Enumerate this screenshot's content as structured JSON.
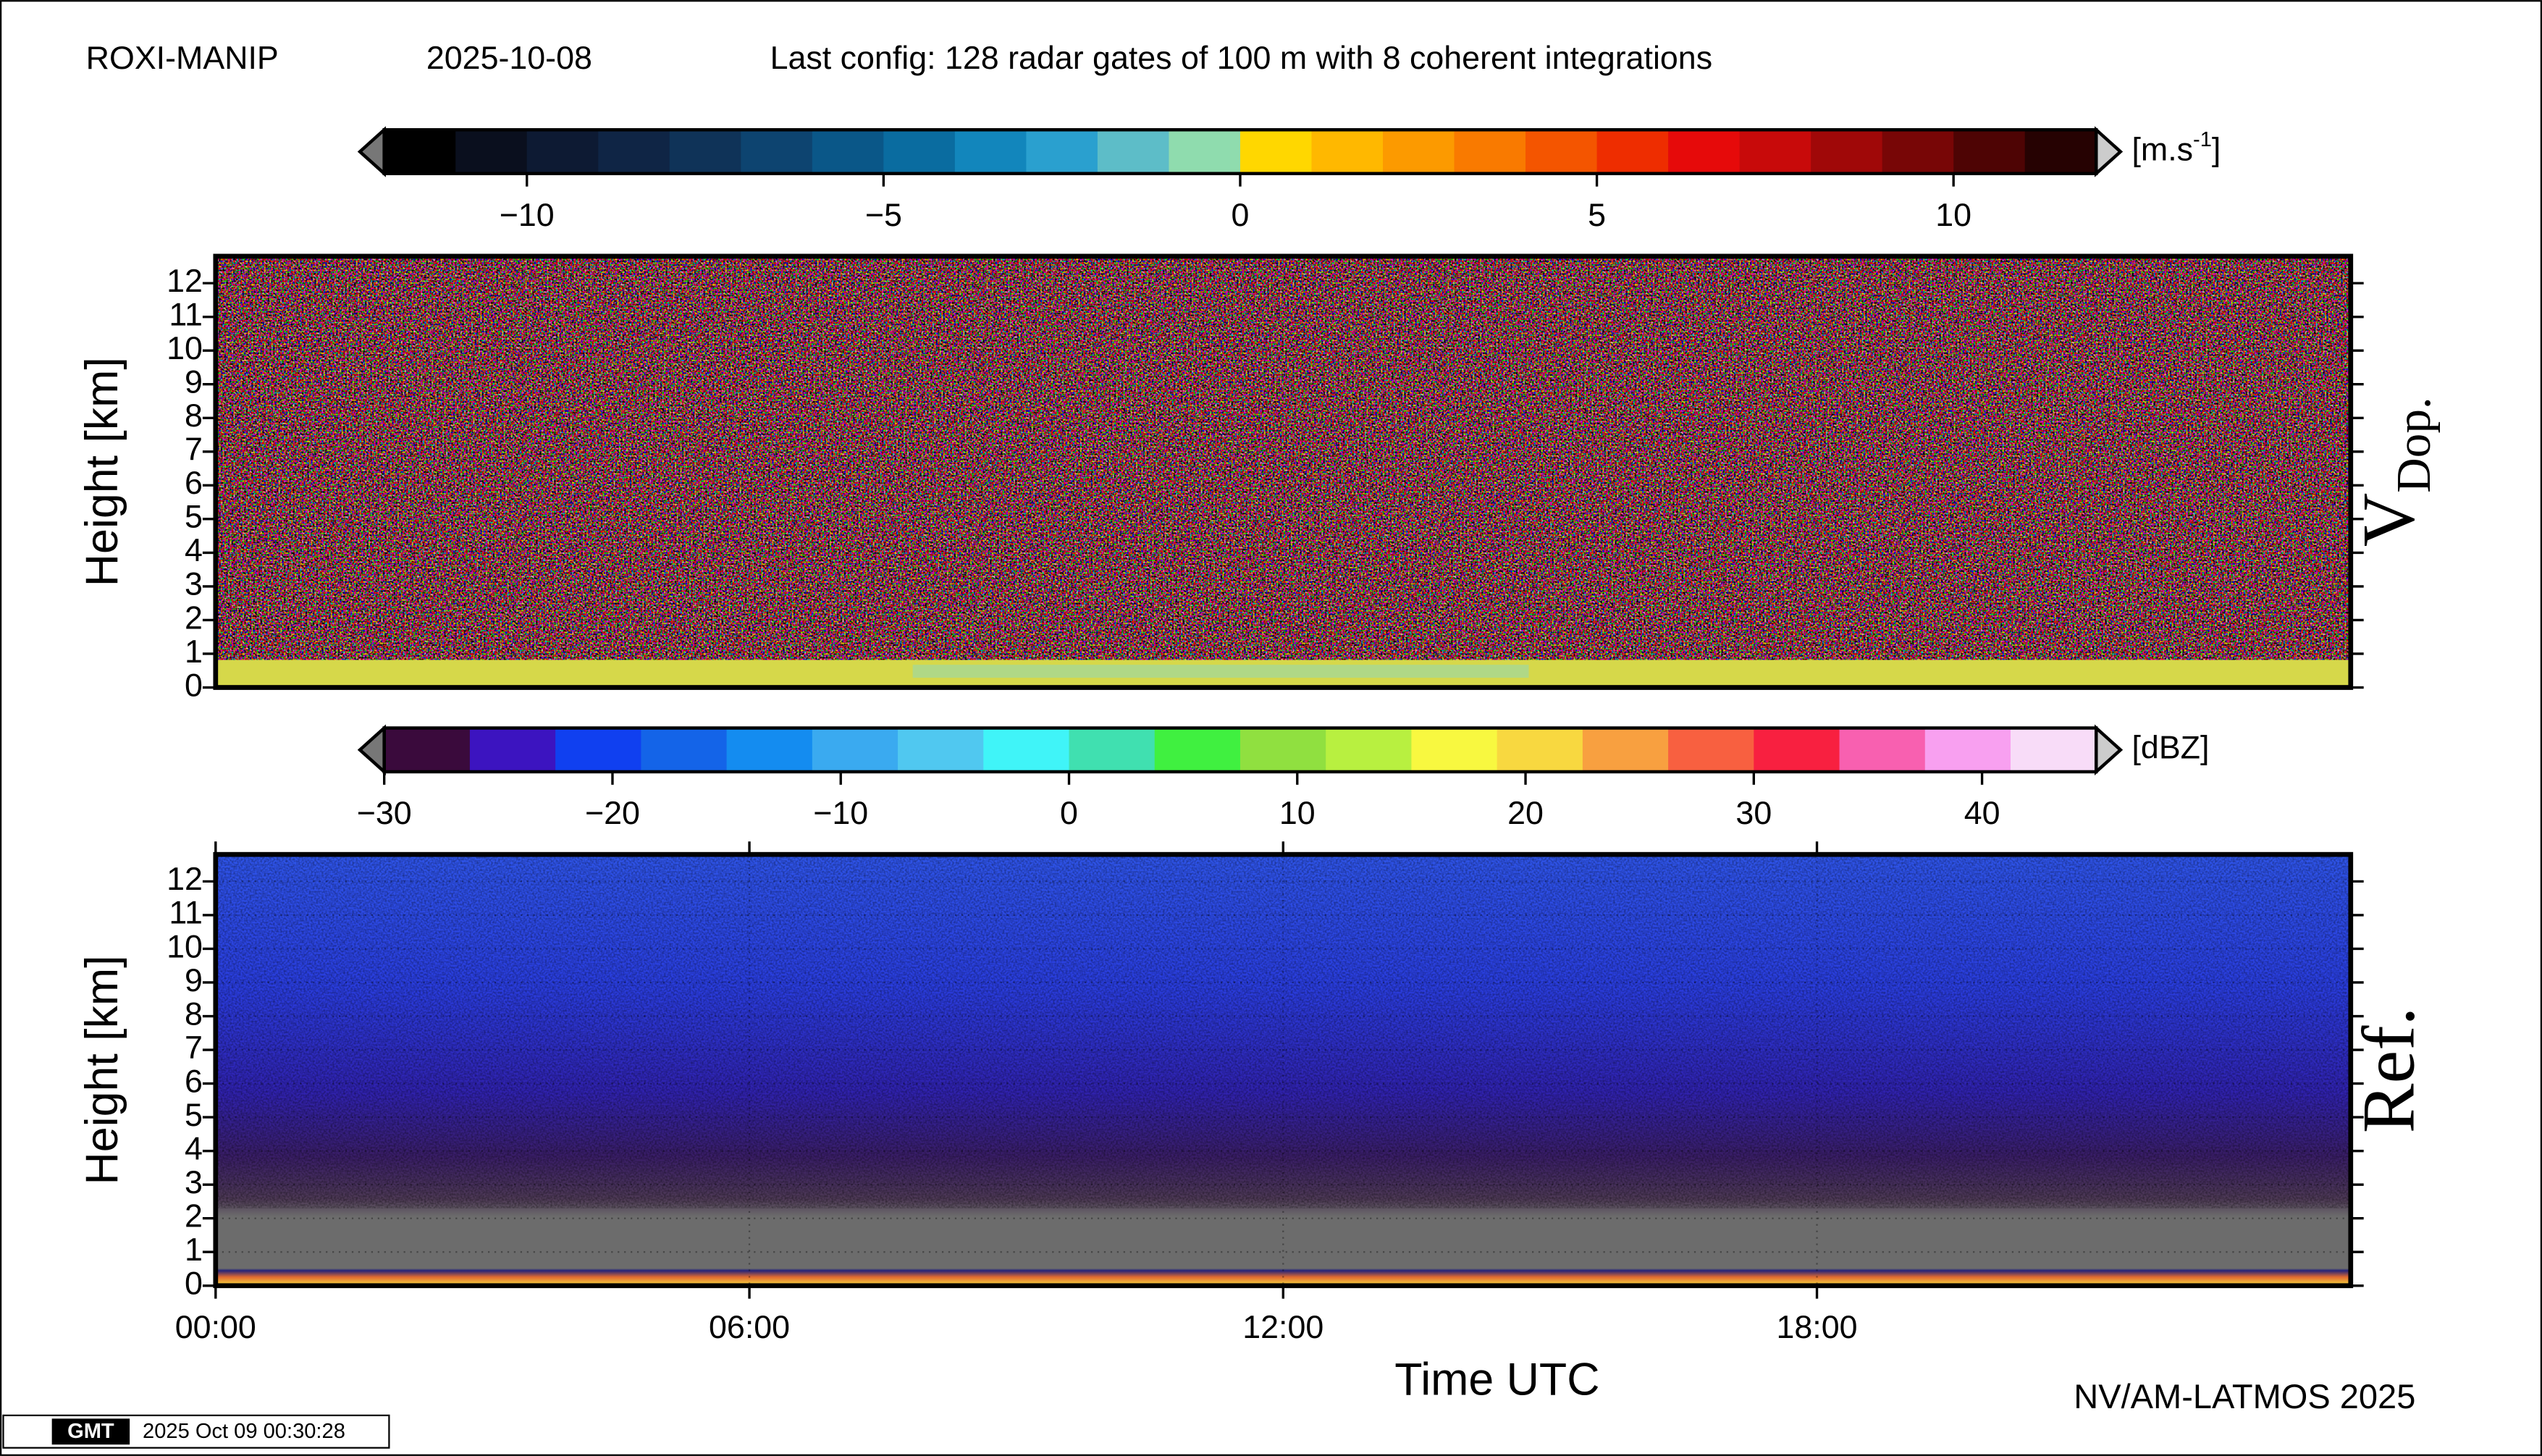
{
  "header": {
    "station": "ROXI-MANIP",
    "date": "2025-10-08",
    "config": "Last config: 128 radar gates of 100 m with 8 coherent integrations",
    "credit": "NV/AM-LATMOS 2025",
    "logo": "GMT",
    "timestamp": "2025 Oct 09 00:30:28"
  },
  "chart_data": [
    {
      "type": "heatmap",
      "panel_label": "V",
      "panel_label_sub": "Dop.",
      "ylabel": "Height [km]",
      "ylim": [
        0,
        12.8
      ],
      "yticks": [
        0,
        1,
        2,
        3,
        4,
        5,
        6,
        7,
        8,
        9,
        10,
        11,
        12
      ],
      "colorbar": {
        "unit": "[m.s",
        "unit_sup": "-1",
        "unit_end": "]",
        "lim": [
          -12,
          12
        ],
        "ticks": [
          {
            "value": -10,
            "label": "−10"
          },
          {
            "value": -5,
            "label": "−5"
          },
          0,
          5,
          10
        ],
        "colors": [
          "#000000",
          "#0a0f1e",
          "#0d1a33",
          "#0f2545",
          "#0f3358",
          "#0d4470",
          "#0a5788",
          "#0a6ca0",
          "#1286bc",
          "#2aa0cf",
          "#5dbdc8",
          "#8fdcae",
          "#ffd700",
          "#ffb800",
          "#fc9a00",
          "#f97a00",
          "#f45500",
          "#ee2d00",
          "#e60a0a",
          "#c80a0a",
          "#a00808",
          "#780606",
          "#4e0404",
          "#260202"
        ]
      }
    },
    {
      "type": "heatmap",
      "panel_label": "Ref.",
      "ylabel": "Height [km]",
      "xlabel": "Time UTC",
      "grid": true,
      "ylim": [
        0,
        12.8
      ],
      "yticks": [
        0,
        1,
        2,
        3,
        4,
        5,
        6,
        7,
        8,
        9,
        10,
        11,
        12
      ],
      "xlim": [
        0,
        24
      ],
      "xticks": [
        {
          "value": 0,
          "label": "00:00"
        },
        {
          "value": 6,
          "label": "06:00"
        },
        {
          "value": 12,
          "label": "12:00"
        },
        {
          "value": 18,
          "label": "18:00"
        }
      ],
      "colorbar": {
        "unit": "[dBZ]",
        "lim": [
          -30,
          45
        ],
        "ticks": [
          {
            "value": -30,
            "label": "−30"
          },
          {
            "value": -20,
            "label": "−20"
          },
          {
            "value": -10,
            "label": "−10"
          },
          0,
          10,
          20,
          30,
          40
        ],
        "colors": [
          "#3a0a3c",
          "#3c14c0",
          "#1040f0",
          "#1464e8",
          "#148cf0",
          "#3aaaf0",
          "#50c8f0",
          "#40f4f8",
          "#40e0b0",
          "#40f040",
          "#90e040",
          "#b8f040",
          "#f8f840",
          "#f8d840",
          "#f8a040",
          "#f86040",
          "#f82040",
          "#f860b0",
          "#f8a0f0",
          "#f8dcf8"
        ]
      }
    }
  ]
}
